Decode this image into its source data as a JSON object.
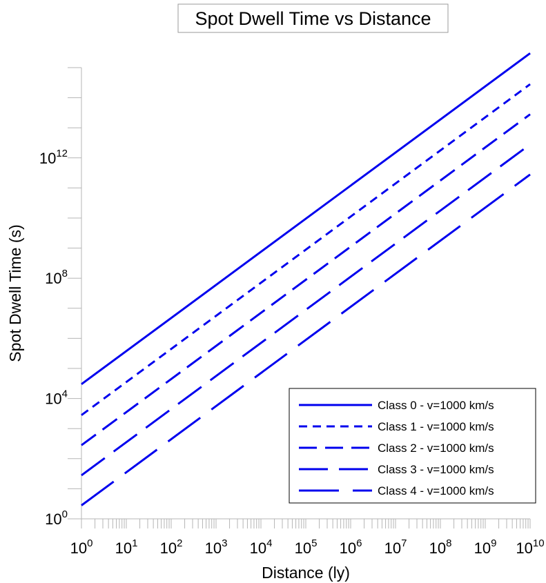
{
  "chart_data": {
    "type": "line",
    "title": "Spot Dwell Time vs Distance",
    "xlabel": "Distance (ly)",
    "ylabel": "Spot Dwell Time (s)",
    "x_scale": "log",
    "y_scale": "log",
    "xlim": [
      1,
      10000000000
    ],
    "ylim": [
      1,
      1000000000000000
    ],
    "x_ticks": [
      {
        "base": "10",
        "exp": "0"
      },
      {
        "base": "10",
        "exp": "1"
      },
      {
        "base": "10",
        "exp": "2"
      },
      {
        "base": "10",
        "exp": "3"
      },
      {
        "base": "10",
        "exp": "4"
      },
      {
        "base": "10",
        "exp": "5"
      },
      {
        "base": "10",
        "exp": "6"
      },
      {
        "base": "10",
        "exp": "7"
      },
      {
        "base": "10",
        "exp": "8"
      },
      {
        "base": "10",
        "exp": "9"
      },
      {
        "base": "10",
        "exp": "10"
      }
    ],
    "y_ticks": [
      {
        "base": "10",
        "exp": "0",
        "value": 1
      },
      {
        "base": "10",
        "exp": "4",
        "value": 10000
      },
      {
        "base": "10",
        "exp": "8",
        "value": 100000000
      },
      {
        "base": "10",
        "exp": "12",
        "value": 1000000000000
      }
    ],
    "grid": false,
    "legend_position": "bottom-right",
    "line_color": "#0000ee",
    "series": [
      {
        "name": "Class 0 - v=1000 km/s",
        "dash": "solid",
        "x": [
          1,
          10000000000
        ],
        "y": [
          30000,
          3000000000000000
        ]
      },
      {
        "name": "Class 1 - v=1000 km/s",
        "dash": "short-dash",
        "x": [
          1,
          10000000000
        ],
        "y": [
          2800,
          280000000000000
        ]
      },
      {
        "name": "Class 2 - v=1000 km/s",
        "dash": "medium-dash",
        "x": [
          1,
          10000000000
        ],
        "y": [
          280,
          28000000000000
        ]
      },
      {
        "name": "Class 3 - v=1000 km/s",
        "dash": "long-dash",
        "x": [
          1,
          10000000000
        ],
        "y": [
          28,
          2800000000000
        ]
      },
      {
        "name": "Class 4 - v=1000 km/s",
        "dash": "longest-dash",
        "x": [
          1,
          10000000000
        ],
        "y": [
          2.8,
          280000000000
        ]
      }
    ]
  }
}
